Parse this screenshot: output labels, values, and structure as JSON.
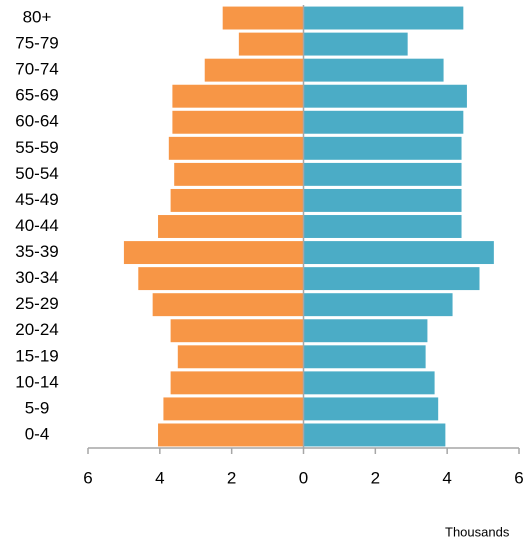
{
  "chart_data": {
    "type": "bar",
    "orientation": "horizontal",
    "categories": [
      "0-4",
      "5-9",
      "10-14",
      "15-19",
      "20-24",
      "25-29",
      "30-34",
      "35-39",
      "40-44",
      "45-49",
      "50-54",
      "55-59",
      "60-64",
      "65-69",
      "70-74",
      "75-79",
      "80+"
    ],
    "series": [
      {
        "color": "#f79646",
        "values": [
          -4.05,
          -3.9,
          -3.7,
          -3.5,
          -3.7,
          -4.2,
          -4.6,
          -5.0,
          -4.05,
          -3.7,
          -3.6,
          -3.75,
          -3.65,
          -3.65,
          -2.75,
          -1.8,
          -2.25
        ]
      },
      {
        "color": "#4bacc6",
        "values": [
          3.95,
          3.75,
          3.65,
          3.4,
          3.45,
          4.15,
          4.9,
          5.3,
          4.4,
          4.4,
          4.4,
          4.4,
          4.45,
          4.55,
          3.9,
          2.9,
          4.45
        ]
      }
    ],
    "xlim": [
      -6,
      6
    ],
    "xticks": [
      {
        "value": -6,
        "label": "6"
      },
      {
        "value": -4,
        "label": "4"
      },
      {
        "value": -2,
        "label": "2"
      },
      0,
      2,
      4,
      6
    ],
    "xlabel": "Thousands"
  }
}
